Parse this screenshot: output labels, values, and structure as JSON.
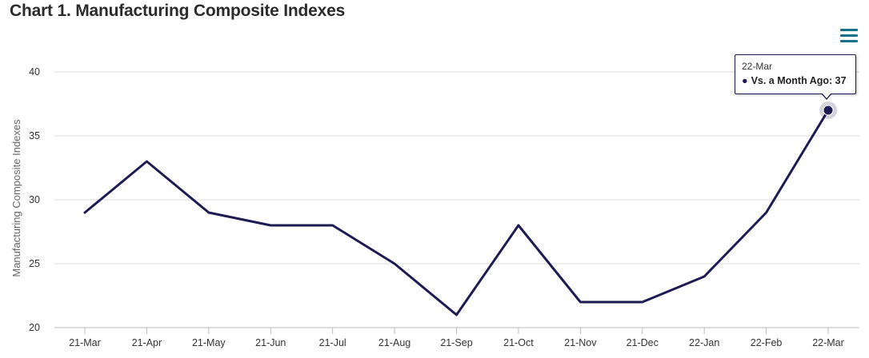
{
  "chart_data": {
    "type": "line",
    "title": "Chart 1. Manufacturing Composite Indexes",
    "ylabel": "Manufacturing Composite Indexes",
    "xlabel": "",
    "categories": [
      "21-Mar",
      "21-Apr",
      "21-May",
      "21-Jun",
      "21-Jul",
      "21-Aug",
      "21-Sep",
      "21-Oct",
      "21-Nov",
      "21-Dec",
      "22-Jan",
      "22-Feb",
      "22-Mar"
    ],
    "series": [
      {
        "name": "Vs. a Month Ago",
        "color": "#1e1b52",
        "values": [
          29,
          33,
          29,
          28,
          28,
          25,
          21,
          28,
          22,
          22,
          24,
          29,
          37
        ]
      }
    ],
    "ylim": [
      20,
      40
    ],
    "yticks": [
      "20",
      "25",
      "30",
      "35",
      "40"
    ],
    "grid": true,
    "legend": "none"
  },
  "tooltip": {
    "date": "22-Mar",
    "series_label": "Vs. a Month Ago: ",
    "value": "37"
  },
  "menu": {
    "icon": "hamburger-menu-icon",
    "color": "#1a6f8c"
  }
}
